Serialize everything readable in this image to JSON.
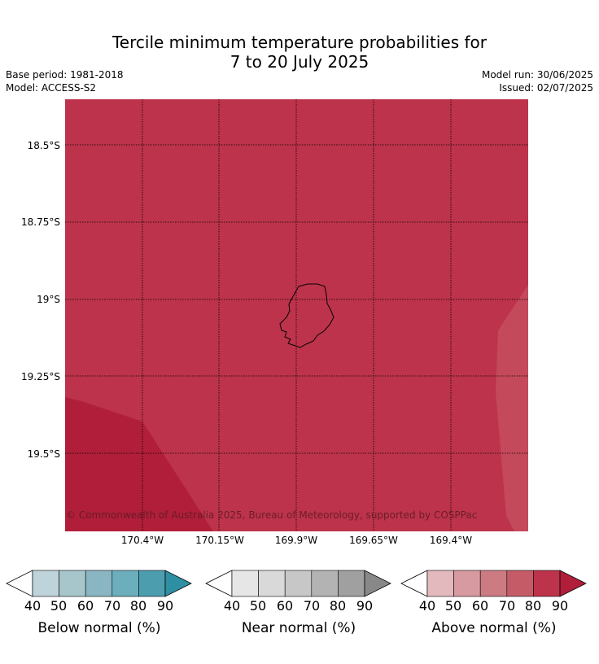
{
  "title": {
    "line1": "Tercile minimum temperature probabilities for",
    "line2": "7 to 20 July 2025"
  },
  "meta": {
    "base_period": "Base period: 1981-2018",
    "model": "Model: ACCESS-S2",
    "model_run": "Model run: 30/06/2025",
    "issued": "Issued: 02/07/2025"
  },
  "map": {
    "latitude_labels": [
      "18.5°S",
      "18.75°S",
      "19°S",
      "19.25°S",
      "19.5°S"
    ],
    "longitude_labels": [
      "170.4°W",
      "170.15°W",
      "169.9°W",
      "169.65°W",
      "169.4°W"
    ],
    "copyright": "© Commonwealth of Australia 2025, Bureau of Meteorology, supported by COSPPac",
    "background_color": "#bd334b",
    "colors": {
      "above_80": "#bd334b",
      "above_90": "#b11e3a",
      "above_70": "#c4495a"
    }
  },
  "colorbars": [
    {
      "label": "Below normal (%)",
      "ticks": [
        "40",
        "50",
        "60",
        "70",
        "80",
        "90"
      ],
      "colors": [
        "#ffffff",
        "#bfd3da",
        "#a7c6cb",
        "#89b6c2",
        "#6daebd",
        "#4c9eaf",
        "#2f8fa2"
      ]
    },
    {
      "label": "Near normal (%)",
      "ticks": [
        "40",
        "50",
        "60",
        "70",
        "80",
        "90"
      ],
      "colors": [
        "#ffffff",
        "#e6e6e6",
        "#d9d9d9",
        "#c7c7c7",
        "#b3b3b3",
        "#a0a0a0",
        "#888888"
      ]
    },
    {
      "label": "Above normal (%)",
      "ticks": [
        "40",
        "50",
        "60",
        "70",
        "80",
        "90"
      ],
      "colors": [
        "#ffffff",
        "#e3b9bd",
        "#d79aa1",
        "#cd7b83",
        "#c45b67",
        "#bd334b",
        "#b11e3a"
      ]
    }
  ]
}
